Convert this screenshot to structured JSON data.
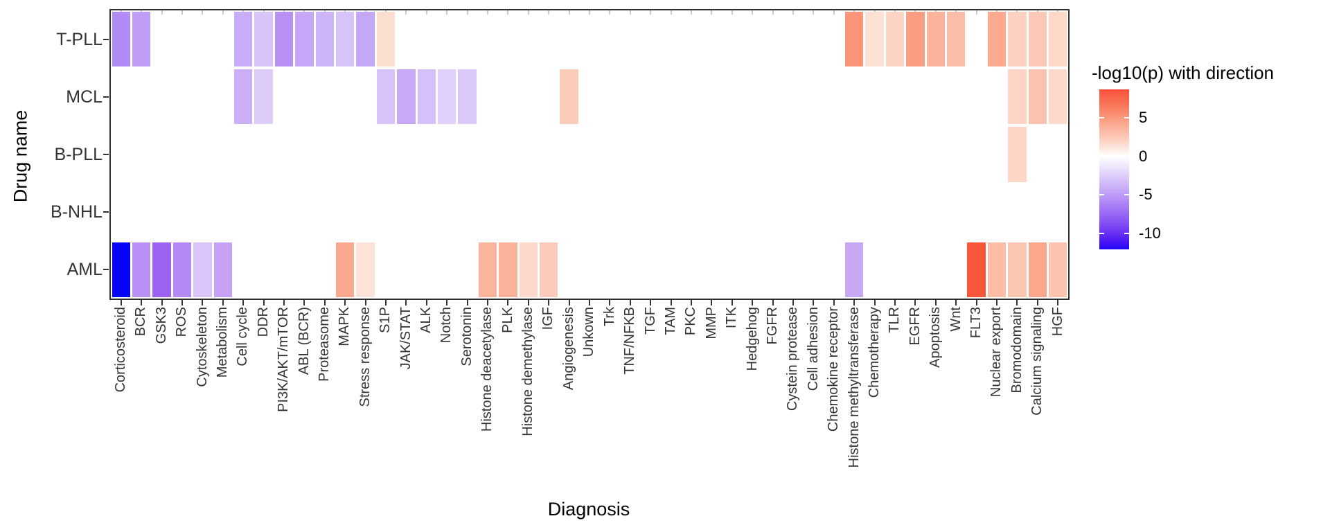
{
  "figure": {
    "x_axis_title": "Diagnosis",
    "y_axis_title": "Drug name"
  },
  "legend": {
    "title": "-log10(p) with direction",
    "tick_labels": [
      "5",
      "0",
      "-5",
      "-10"
    ],
    "tick_values": [
      5,
      0,
      -5,
      -10
    ]
  },
  "chart_data": {
    "type": "heatmap",
    "xlabel": "Diagnosis",
    "ylabel": "Drug name",
    "grid": false,
    "legend_position": "right",
    "colorbar": {
      "title": "-log10(p) with direction",
      "max": 8.7,
      "min": -12.1,
      "high_color": "#ff0000",
      "mid_color": "#ffffff",
      "low_color": "#0000ff"
    },
    "x_categories": [
      "Corticosteroid",
      "BCR",
      "GSK3",
      "ROS",
      "Cytoskeleton",
      "Metabolism",
      "Cell cycle",
      "DDR",
      "PI3K/AKT/mTOR",
      "ABL (BCR)",
      "Proteasome",
      "MAPK",
      "Stress response",
      "S1P",
      "JAK/STAT",
      "ALK",
      "Notch",
      "Serotonin",
      "Histone deacetylase",
      "PLK",
      "Histone demethylase",
      "IGF",
      "Angiogenesis",
      "Unkown",
      "Trk",
      "TNF/NFKB",
      "TGF",
      "TAM",
      "PKC",
      "MMP",
      "ITK",
      "Hedgehog",
      "FGFR",
      "Cystein protease",
      "Cell adhesion",
      "Chemokine receptor",
      "Histone methyltransferase",
      "Chemotherapy",
      "TLR",
      "EGFR",
      "Apoptosis",
      "Wnt",
      "FLT3",
      "Nuclear export",
      "Bromodomain",
      "Calcium signaling",
      "HGF"
    ],
    "y_categories": [
      "T-PLL",
      "MCL",
      "B-PLL",
      "B-NHL",
      "AML"
    ],
    "cells": [
      {
        "row": "T-PLL",
        "col": "Corticosteroid",
        "value": -5.3,
        "color": "#b28af3"
      },
      {
        "row": "T-PLL",
        "col": "BCR",
        "value": -4.3,
        "color": "#c09df6"
      },
      {
        "row": "T-PLL",
        "col": "Cell cycle",
        "value": -3.8,
        "color": "#c9acf7"
      },
      {
        "row": "T-PLL",
        "col": "DDR",
        "value": -2.7,
        "color": "#d8c4f9"
      },
      {
        "row": "T-PLL",
        "col": "PI3K/AKT/mTOR",
        "value": -4.9,
        "color": "#b991f5"
      },
      {
        "row": "T-PLL",
        "col": "ABL (BCR)",
        "value": -4.0,
        "color": "#c5a6f7"
      },
      {
        "row": "T-PLL",
        "col": "Proteasome",
        "value": -3.5,
        "color": "#cdb3f8"
      },
      {
        "row": "T-PLL",
        "col": "MAPK",
        "value": -2.8,
        "color": "#d7c2f9"
      },
      {
        "row": "T-PLL",
        "col": "Stress response",
        "value": -4.0,
        "color": "#c5a7f7"
      },
      {
        "row": "T-PLL",
        "col": "S1P",
        "value": 1.3,
        "color": "#fcded1"
      },
      {
        "row": "T-PLL",
        "col": "Histone methyltransferase",
        "value": 5.2,
        "color": "#fb9579"
      },
      {
        "row": "T-PLL",
        "col": "Chemotherapy",
        "value": 1.2,
        "color": "#fde1d5"
      },
      {
        "row": "T-PLL",
        "col": "TLR",
        "value": 1.9,
        "color": "#fdd3c3"
      },
      {
        "row": "T-PLL",
        "col": "EGFR",
        "value": 4.9,
        "color": "#fb9d82"
      },
      {
        "row": "T-PLL",
        "col": "Apoptosis",
        "value": 3.7,
        "color": "#fbb39b"
      },
      {
        "row": "T-PLL",
        "col": "Wnt",
        "value": 3.2,
        "color": "#fbbda8"
      },
      {
        "row": "T-PLL",
        "col": "Nuclear export",
        "value": 4.2,
        "color": "#fbaa8f"
      },
      {
        "row": "T-PLL",
        "col": "Bromodomain",
        "value": 2.0,
        "color": "#fdd1c1"
      },
      {
        "row": "T-PLL",
        "col": "Calcium signaling",
        "value": 2.4,
        "color": "#fcc9b6"
      },
      {
        "row": "T-PLL",
        "col": "HGF",
        "value": 1.7,
        "color": "#fdd7c8"
      },
      {
        "row": "MCL",
        "col": "Cell cycle",
        "value": -3.6,
        "color": "#cdaff8"
      },
      {
        "row": "MCL",
        "col": "DDR",
        "value": -2.4,
        "color": "#ddcbfa"
      },
      {
        "row": "MCL",
        "col": "S1P",
        "value": -2.8,
        "color": "#d7c2f9"
      },
      {
        "row": "MCL",
        "col": "JAK/STAT",
        "value": -3.9,
        "color": "#c7a9f6"
      },
      {
        "row": "MCL",
        "col": "ALK",
        "value": -2.9,
        "color": "#d5c0f9"
      },
      {
        "row": "MCL",
        "col": "Notch",
        "value": -2.2,
        "color": "#e0d0fb"
      },
      {
        "row": "MCL",
        "col": "Serotonin",
        "value": -2.5,
        "color": "#dbc9fa"
      },
      {
        "row": "MCL",
        "col": "Angiogenesis",
        "value": 2.3,
        "color": "#fcccba"
      },
      {
        "row": "MCL",
        "col": "Bromodomain",
        "value": 1.9,
        "color": "#fdd4c5"
      },
      {
        "row": "MCL",
        "col": "Calcium signaling",
        "value": 2.8,
        "color": "#fbc2ae"
      },
      {
        "row": "MCL",
        "col": "HGF",
        "value": 1.6,
        "color": "#fdd9cb"
      },
      {
        "row": "B-PLL",
        "col": "Bromodomain",
        "value": 1.7,
        "color": "#fdd6c8"
      },
      {
        "row": "AML",
        "col": "Corticosteroid",
        "value": -12.1,
        "color": "#0504f4"
      },
      {
        "row": "AML",
        "col": "BCR",
        "value": -4.9,
        "color": "#b98ef5"
      },
      {
        "row": "AML",
        "col": "GSK3",
        "value": -7.3,
        "color": "#9c61f0"
      },
      {
        "row": "AML",
        "col": "ROS",
        "value": -5.2,
        "color": "#b489f4"
      },
      {
        "row": "AML",
        "col": "Cytoskeleton",
        "value": -2.4,
        "color": "#dcc5fa"
      },
      {
        "row": "AML",
        "col": "Metabolism",
        "value": -4.1,
        "color": "#c6a2f7"
      },
      {
        "row": "AML",
        "col": "MAPK",
        "value": 4.2,
        "color": "#fba98e"
      },
      {
        "row": "AML",
        "col": "Stress response",
        "value": 1.1,
        "color": "#fde3d8"
      },
      {
        "row": "AML",
        "col": "Histone deacetylase",
        "value": 3.6,
        "color": "#fbb59d"
      },
      {
        "row": "AML",
        "col": "PLK",
        "value": 3.7,
        "color": "#fbb29a"
      },
      {
        "row": "AML",
        "col": "Histone demethylase",
        "value": 1.6,
        "color": "#fdd9cb"
      },
      {
        "row": "AML",
        "col": "IGF",
        "value": 2.4,
        "color": "#fccaba"
      },
      {
        "row": "AML",
        "col": "Histone methyltransferase",
        "value": -3.9,
        "color": "#c8a9f1"
      },
      {
        "row": "AML",
        "col": "FLT3",
        "value": 8.6,
        "color": "#f9553b"
      },
      {
        "row": "AML",
        "col": "Nuclear export",
        "value": 3.1,
        "color": "#fbbda6"
      },
      {
        "row": "AML",
        "col": "Bromodomain",
        "value": 2.6,
        "color": "#fbc7b3"
      },
      {
        "row": "AML",
        "col": "Calcium signaling",
        "value": 4.3,
        "color": "#faa78c"
      },
      {
        "row": "AML",
        "col": "HGF",
        "value": 2.8,
        "color": "#fcc3ae"
      }
    ]
  }
}
